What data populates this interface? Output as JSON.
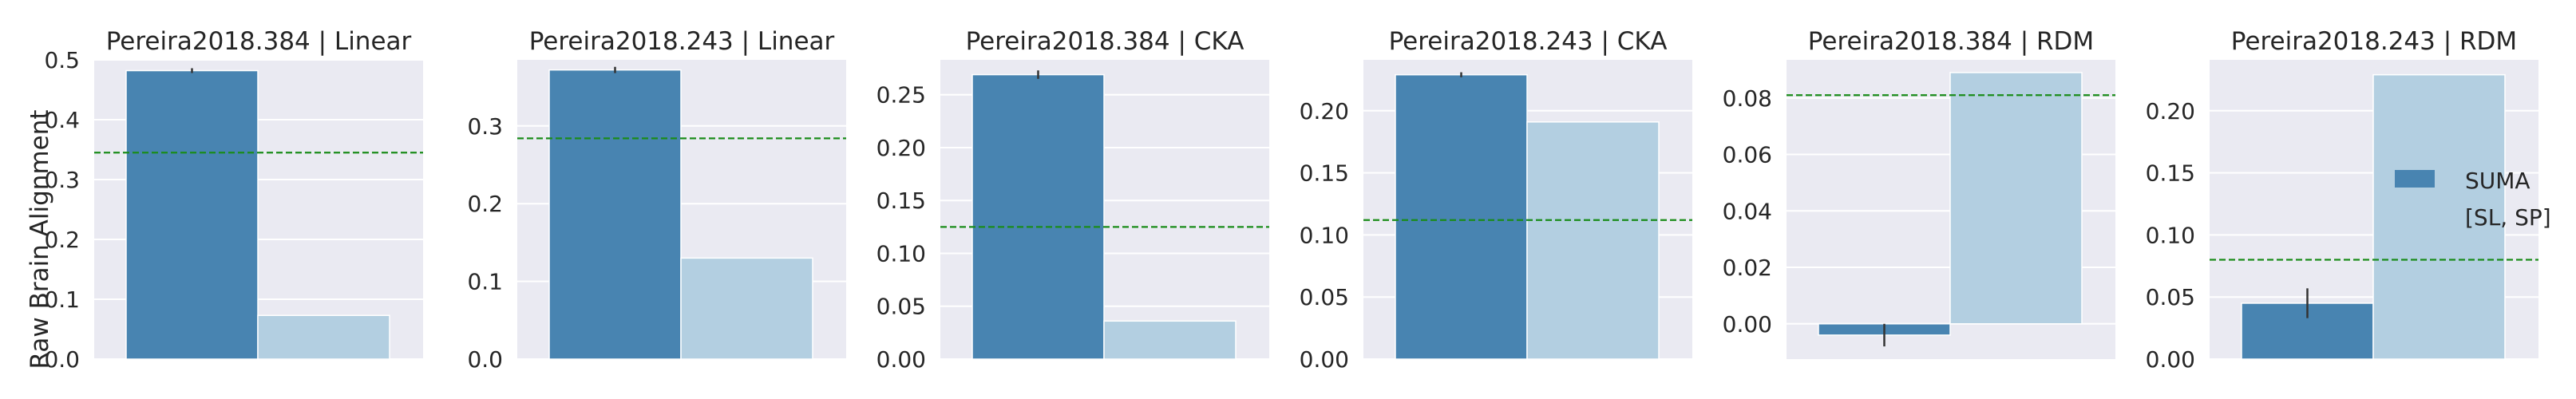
{
  "ylabel": "Raw Brain Alignment",
  "colors": {
    "panel_bg": "#EAEAF2",
    "grid": "#FFFFFF",
    "series_0": "#4884B1",
    "series_1": "#B3CFE1",
    "baseline": "#1A8C1A",
    "errorbar": "#333333"
  },
  "legend": {
    "placement": "right of last panel",
    "entries": [
      "SUMA",
      "[SL, SP]"
    ]
  },
  "chart_data": [
    {
      "type": "bar",
      "title": "Pereira2018.384 | Linear",
      "ylim": [
        0,
        0.5
      ],
      "yticks": [
        0.0,
        0.1,
        0.2,
        0.3,
        0.4,
        0.5
      ],
      "ytick_labels": [
        "0.0",
        "0.1",
        "0.2",
        "0.3",
        "0.4",
        "0.5"
      ],
      "series": [
        {
          "name": "SUMA",
          "value": 0.482,
          "error": 0.004
        },
        {
          "name": "[SL, SP]",
          "value": 0.073,
          "error": 0
        }
      ],
      "baseline": 0.345
    },
    {
      "type": "bar",
      "title": "Pereira2018.243 | Linear",
      "ylim": [
        0,
        0.385
      ],
      "yticks": [
        0.0,
        0.1,
        0.2,
        0.3
      ],
      "ytick_labels": [
        "0.0",
        "0.1",
        "0.2",
        "0.3"
      ],
      "series": [
        {
          "name": "SUMA",
          "value": 0.372,
          "error": 0.004
        },
        {
          "name": "[SL, SP]",
          "value": 0.13,
          "error": 0
        }
      ],
      "baseline": 0.284
    },
    {
      "type": "bar",
      "title": "Pereira2018.384 | CKA",
      "ylim": [
        0,
        0.283
      ],
      "yticks": [
        0.0,
        0.05,
        0.1,
        0.15,
        0.2,
        0.25
      ],
      "ytick_labels": [
        "0.00",
        "0.05",
        "0.10",
        "0.15",
        "0.20",
        "0.25"
      ],
      "series": [
        {
          "name": "SUMA",
          "value": 0.269,
          "error": 0.004
        },
        {
          "name": "[SL, SP]",
          "value": 0.036,
          "error": 0
        }
      ],
      "baseline": 0.125
    },
    {
      "type": "bar",
      "title": "Pereira2018.243 | CKA",
      "ylim": [
        0,
        0.241
      ],
      "yticks": [
        0.0,
        0.05,
        0.1,
        0.15,
        0.2
      ],
      "ytick_labels": [
        "0.00",
        "0.05",
        "0.10",
        "0.15",
        "0.20"
      ],
      "series": [
        {
          "name": "SUMA",
          "value": 0.229,
          "error": 0.002
        },
        {
          "name": "[SL, SP]",
          "value": 0.191,
          "error": 0
        }
      ],
      "baseline": 0.112
    },
    {
      "type": "bar",
      "title": "Pereira2018.384 | RDM",
      "ylim": [
        -0.0125,
        0.0935
      ],
      "yticks": [
        0.0,
        0.02,
        0.04,
        0.06,
        0.08
      ],
      "ytick_labels": [
        "0.00",
        "0.02",
        "0.04",
        "0.06",
        "0.08"
      ],
      "series": [
        {
          "name": "SUMA",
          "value": -0.004,
          "error": 0.004
        },
        {
          "name": "[SL, SP]",
          "value": 0.089,
          "error": 0
        }
      ],
      "baseline": 0.081
    },
    {
      "type": "bar",
      "title": "Pereira2018.243 | RDM",
      "ylim": [
        0,
        0.241
      ],
      "yticks": [
        0.0,
        0.05,
        0.1,
        0.15,
        0.2
      ],
      "ytick_labels": [
        "0.00",
        "0.05",
        "0.10",
        "0.15",
        "0.20"
      ],
      "series": [
        {
          "name": "SUMA",
          "value": 0.045,
          "error": 0.012
        },
        {
          "name": "[SL, SP]",
          "value": 0.229,
          "error": 0
        }
      ],
      "baseline": 0.08
    }
  ]
}
